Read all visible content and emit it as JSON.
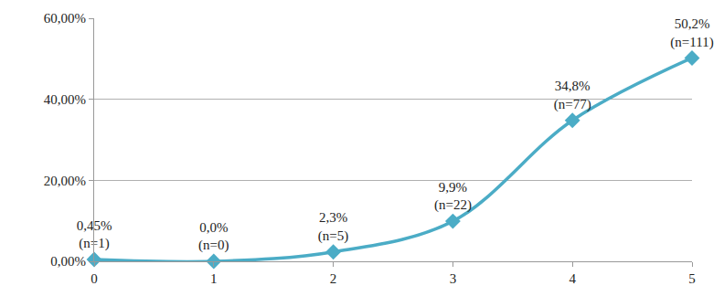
{
  "chart_data": {
    "type": "line",
    "x": [
      0,
      1,
      2,
      3,
      4,
      5
    ],
    "values": [
      0.45,
      0,
      2.3,
      9.9,
      34.8,
      50.2
    ],
    "value_labels": [
      "0,45%\n(n=1)",
      "0,0%\n(n=0)",
      "2,3%\n(n=5)",
      "9,9%\n(n=22)",
      "34,8%\n(n=77)",
      "50,2%\n(n=111)"
    ],
    "data_labels": true,
    "color": "#4bacc6",
    "marker": "diamond",
    "line_style": "smooth",
    "xlim": [
      0,
      5
    ],
    "xticks": [
      0,
      1,
      2,
      3,
      4,
      5
    ],
    "ylim": [
      0,
      60
    ],
    "yticks": [
      {
        "value": 0,
        "label": "0,00%"
      },
      {
        "value": 20,
        "label": "20,00%"
      },
      {
        "value": 40,
        "label": "40,00%"
      },
      {
        "value": 60,
        "label": "60,00%"
      }
    ],
    "grid": true
  }
}
